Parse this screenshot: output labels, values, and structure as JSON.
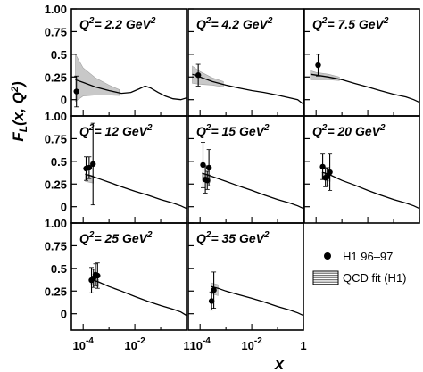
{
  "figure": {
    "ylabel": "F",
    "ylabel_sub": "L",
    "ylabel_args": "(x, Q",
    "ylabel_sup": "2",
    "ylabel_close": ")",
    "xlabel": "x",
    "q_prefix": "Q",
    "q_sup": "2",
    "q_eq": "= ",
    "q_unit": " GeV",
    "q_unit_sup": "2",
    "y_ticks": [
      "1.00",
      "0.75",
      "0.5",
      "0.25",
      "0"
    ],
    "x_ticks": [
      {
        "base": "10",
        "exp": "-4",
        "value": 0.0001
      },
      {
        "base": "10",
        "exp": "-2",
        "value": 0.01
      },
      {
        "base": "1",
        "exp": "",
        "value": 1
      }
    ]
  },
  "legend": {
    "data_label": "H1 96–97",
    "fit_label": "QCD fit (H1)"
  },
  "chart_data": {
    "type": "scatter",
    "xscale": "log",
    "xlim": [
      3.5e-05,
      1.0
    ],
    "ylim": [
      -0.18,
      1.0
    ],
    "grid": false,
    "legend_position": "bottom-right",
    "series_names": [
      "H1 96–97",
      "QCD fit (H1)"
    ],
    "panels": [
      {
        "q2": "2.2",
        "points": [
          {
            "x": 5.5e-05,
            "y": 0.09,
            "err": 0.17
          }
        ],
        "band": [
          [
            5e-05,
            0.5,
            -0.02
          ],
          [
            0.0001,
            0.35,
            0.04
          ],
          [
            0.0003,
            0.24,
            0.05
          ],
          [
            0.001,
            0.16,
            0.05
          ],
          [
            0.0025,
            0.11,
            0.045
          ]
        ],
        "curve": [
          [
            5e-05,
            0.22
          ],
          [
            0.0001,
            0.19
          ],
          [
            0.0003,
            0.14
          ],
          [
            0.001,
            0.1
          ],
          [
            0.003,
            0.07
          ],
          [
            0.007,
            0.08
          ],
          [
            0.015,
            0.12
          ],
          [
            0.025,
            0.15
          ],
          [
            0.04,
            0.13
          ],
          [
            0.08,
            0.08
          ],
          [
            0.15,
            0.04
          ],
          [
            0.3,
            0.01
          ],
          [
            0.6,
            0.0
          ],
          [
            1.0,
            0.02
          ]
        ]
      },
      {
        "q2": "4.2",
        "points": [
          {
            "x": 8.5e-05,
            "y": 0.27,
            "err": 0.12
          }
        ],
        "band": [
          [
            5e-05,
            0.37,
            0.18
          ],
          [
            0.0001,
            0.31,
            0.17
          ],
          [
            0.0003,
            0.24,
            0.16
          ],
          [
            0.0008,
            0.2,
            0.14
          ]
        ],
        "curve": [
          [
            5e-05,
            0.28
          ],
          [
            0.0001,
            0.25
          ],
          [
            0.0003,
            0.2
          ],
          [
            0.001,
            0.16
          ],
          [
            0.003,
            0.13
          ],
          [
            0.01,
            0.1
          ],
          [
            0.03,
            0.08
          ],
          [
            0.1,
            0.05
          ],
          [
            0.3,
            0.02
          ],
          [
            0.6,
            0.0
          ],
          [
            1.0,
            -0.05
          ]
        ]
      },
      {
        "q2": "7.5",
        "points": [
          {
            "x": 0.00012,
            "y": 0.38,
            "err": 0.12
          }
        ],
        "band": [
          [
            6e-05,
            0.32,
            0.22
          ],
          [
            0.0001,
            0.3,
            0.22
          ],
          [
            0.0003,
            0.28,
            0.22
          ],
          [
            0.0008,
            0.25,
            0.21
          ]
        ],
        "curve": [
          [
            6e-05,
            0.28
          ],
          [
            0.0001,
            0.27
          ],
          [
            0.0003,
            0.25
          ],
          [
            0.001,
            0.22
          ],
          [
            0.003,
            0.18
          ],
          [
            0.01,
            0.14
          ],
          [
            0.03,
            0.1
          ],
          [
            0.1,
            0.06
          ],
          [
            0.3,
            0.03
          ],
          [
            0.6,
            0.0
          ],
          [
            1.0,
            -0.03
          ]
        ]
      },
      {
        "q2": "12",
        "points": [
          {
            "x": 0.00013,
            "y": 0.42,
            "err": 0.13
          },
          {
            "x": 0.00017,
            "y": 0.43,
            "err": 0.12
          },
          {
            "x": 0.00024,
            "y": 0.47,
            "err": 0.45
          }
        ],
        "band": [
          [
            0.00012,
            0.36,
            0.28
          ],
          [
            0.00025,
            0.34,
            0.26
          ]
        ],
        "curve": [
          [
            0.00012,
            0.36
          ],
          [
            0.0002,
            0.34
          ],
          [
            0.0005,
            0.3
          ],
          [
            0.001,
            0.27
          ],
          [
            0.003,
            0.22
          ],
          [
            0.01,
            0.17
          ],
          [
            0.03,
            0.13
          ],
          [
            0.1,
            0.08
          ],
          [
            0.3,
            0.04
          ],
          [
            0.6,
            0.01
          ],
          [
            1.0,
            -0.02
          ]
        ]
      },
      {
        "q2": "15",
        "points": [
          {
            "x": 0.00013,
            "y": 0.46,
            "err": 0.25
          },
          {
            "x": 0.00016,
            "y": 0.3,
            "err": 0.15
          },
          {
            "x": 0.00019,
            "y": 0.29,
            "err": 0.1
          },
          {
            "x": 0.00022,
            "y": 0.43,
            "err": 0.2
          }
        ],
        "band": [
          [
            0.00012,
            0.37,
            0.29
          ],
          [
            0.00025,
            0.35,
            0.27
          ]
        ],
        "curve": [
          [
            0.00012,
            0.37
          ],
          [
            0.0002,
            0.35
          ],
          [
            0.0005,
            0.31
          ],
          [
            0.001,
            0.28
          ],
          [
            0.003,
            0.23
          ],
          [
            0.01,
            0.18
          ],
          [
            0.03,
            0.13
          ],
          [
            0.1,
            0.08
          ],
          [
            0.3,
            0.04
          ],
          [
            0.6,
            0.01
          ],
          [
            1.0,
            -0.02
          ]
        ]
      },
      {
        "q2": "20",
        "points": [
          {
            "x": 0.00018,
            "y": 0.44,
            "err": 0.14
          },
          {
            "x": 0.00023,
            "y": 0.32,
            "err": 0.1
          },
          {
            "x": 0.00027,
            "y": 0.33,
            "err": 0.1
          },
          {
            "x": 0.00034,
            "y": 0.38,
            "err": 0.2
          }
        ],
        "band": [
          [
            0.00017,
            0.38,
            0.3
          ],
          [
            0.00035,
            0.36,
            0.28
          ]
        ],
        "curve": [
          [
            0.00017,
            0.38
          ],
          [
            0.0003,
            0.36
          ],
          [
            0.0006,
            0.32
          ],
          [
            0.001,
            0.29
          ],
          [
            0.003,
            0.24
          ],
          [
            0.01,
            0.18
          ],
          [
            0.03,
            0.13
          ],
          [
            0.1,
            0.08
          ],
          [
            0.3,
            0.04
          ],
          [
            0.6,
            0.01
          ],
          [
            1.0,
            -0.02
          ]
        ]
      },
      {
        "q2": "25",
        "points": [
          {
            "x": 0.00021,
            "y": 0.37,
            "err": 0.14
          },
          {
            "x": 0.00025,
            "y": 0.39,
            "err": 0.1
          },
          {
            "x": 0.0003,
            "y": 0.43,
            "err": 0.12
          },
          {
            "x": 0.00036,
            "y": 0.42,
            "err": 0.14
          }
        ],
        "band": [
          [
            0.0002,
            0.4,
            0.32
          ],
          [
            0.0004,
            0.38,
            0.3
          ]
        ],
        "curve": [
          [
            0.0002,
            0.38
          ],
          [
            0.0004,
            0.35
          ],
          [
            0.001,
            0.3
          ],
          [
            0.003,
            0.25
          ],
          [
            0.01,
            0.19
          ],
          [
            0.03,
            0.14
          ],
          [
            0.1,
            0.09
          ],
          [
            0.3,
            0.05
          ],
          [
            0.6,
            0.02
          ],
          [
            1.0,
            -0.02
          ]
        ]
      },
      {
        "q2": "35",
        "points": [
          {
            "x": 0.00028,
            "y": 0.14,
            "err": 0.1
          },
          {
            "x": 0.00034,
            "y": 0.26,
            "err": 0.2
          }
        ],
        "band": [
          [
            0.00027,
            0.34,
            0.22
          ],
          [
            0.0005,
            0.32,
            0.2
          ]
        ],
        "curve": [
          [
            0.00027,
            0.3
          ],
          [
            0.0005,
            0.28
          ],
          [
            0.001,
            0.25
          ],
          [
            0.003,
            0.21
          ],
          [
            0.01,
            0.17
          ],
          [
            0.03,
            0.13
          ],
          [
            0.1,
            0.08
          ],
          [
            0.3,
            0.04
          ],
          [
            0.6,
            0.01
          ],
          [
            1.0,
            -0.02
          ]
        ]
      }
    ]
  }
}
